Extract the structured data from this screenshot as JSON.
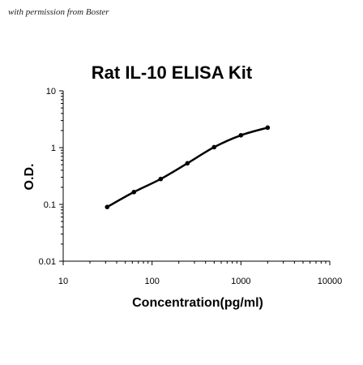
{
  "watermark": "with permission from Boster",
  "chart_data": {
    "type": "line",
    "title": "Rat IL-10 ELISA Kit",
    "xlabel": "Concentration(pg/ml)",
    "ylabel": "O.D.",
    "xscale": "log",
    "yscale": "log",
    "xlim": [
      10,
      10000
    ],
    "ylim": [
      0.01,
      10
    ],
    "x_ticks": [
      "10",
      "100",
      "1000",
      "10000"
    ],
    "y_ticks": [
      "0.01",
      "0.1",
      "1",
      "10"
    ],
    "grid": false,
    "legend": "none",
    "colors": {
      "line": "#000000",
      "points": "#000000",
      "axis": "#000000"
    },
    "series": [
      {
        "x": [
          31.25,
          62.5,
          125,
          250,
          500,
          1000,
          2000
        ],
        "y": [
          0.09,
          0.165,
          0.28,
          0.53,
          1.02,
          1.65,
          2.25
        ]
      }
    ]
  }
}
